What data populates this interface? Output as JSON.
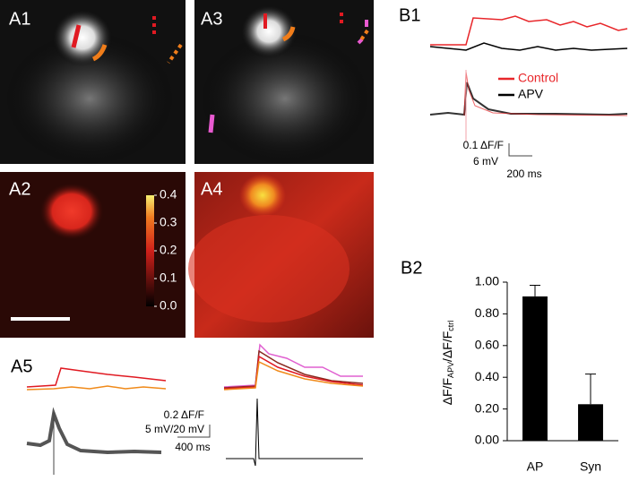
{
  "panels": {
    "a1": "A1",
    "a2": "A2",
    "a3": "A3",
    "a4": "A4",
    "a5": "A5",
    "b1": "B1",
    "b2": "B2"
  },
  "colorbar": {
    "ticks": [
      {
        "value": 0,
        "label": "0.0"
      },
      0.1,
      0.2,
      0.3,
      0.4
    ],
    "lim": [
      0,
      0.4
    ]
  },
  "b1": {
    "legend": [
      {
        "name": "Control",
        "color": "#e8262a"
      },
      {
        "name": "APV",
        "color": "#000000"
      }
    ],
    "scale": {
      "df": "0.1 ΔF/F",
      "mv": "6 mV",
      "time": "200 ms"
    }
  },
  "a5": {
    "scale": {
      "df": "0.2 ΔF/F",
      "mv": "5 mV/20 mV",
      "time": "400 ms"
    }
  },
  "chart_data": {
    "type": "bar",
    "categories": [
      "AP",
      "Syn"
    ],
    "values": [
      0.91,
      0.23
    ],
    "errors": [
      0.07,
      0.19
    ],
    "color": "#000000",
    "ylim": [
      0,
      1
    ],
    "yticks": [
      {
        "value": 0,
        "label": "0.00"
      },
      {
        "value": 0.2,
        "label": "0.20"
      },
      {
        "value": 0.4,
        "label": "0.40"
      },
      {
        "value": 0.6,
        "label": "0.60"
      },
      {
        "value": 0.8,
        "label": "0.80"
      },
      {
        "value": 1,
        "label": "1.00"
      }
    ],
    "ylabel_parts": [
      "ΔF/F",
      "APV",
      "/ΔF/F",
      "ctrl"
    ]
  }
}
